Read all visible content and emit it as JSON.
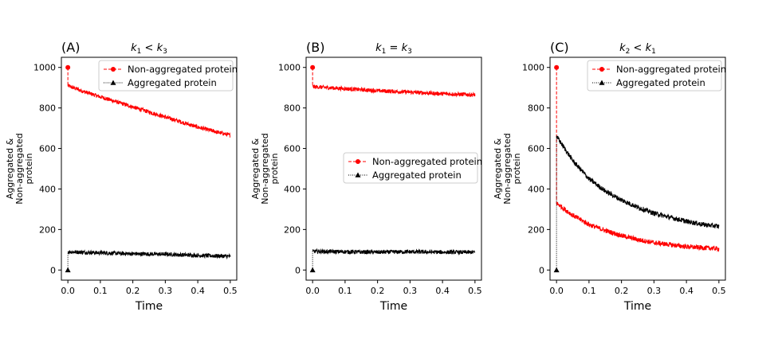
{
  "chart_data": [
    {
      "type": "line",
      "panel_label": "(A)",
      "title_lhs": "k",
      "title_lhs_sub": "1",
      "title_op": "<",
      "title_rhs": "k",
      "title_rhs_sub": "3",
      "xlabel": "Time",
      "ylabel_lines": [
        "Aggregated &",
        "Non-aggregated",
        "protein"
      ],
      "xlim": [
        -0.02,
        0.52
      ],
      "ylim": [
        -50,
        1050
      ],
      "xticks": [
        0.0,
        0.1,
        0.2,
        0.3,
        0.4,
        0.5
      ],
      "xtick_labels": [
        "0.0",
        "0.1",
        "0.2",
        "0.3",
        "0.4",
        "0.5"
      ],
      "yticks": [
        0,
        200,
        400,
        600,
        800,
        1000
      ],
      "ytick_labels": [
        "0",
        "200",
        "400",
        "600",
        "800",
        "1000"
      ],
      "legend_position": "top-right",
      "series": [
        {
          "name": "Non-aggregated protein",
          "color": "#ff0000",
          "marker": "circle",
          "linestyle": "dashed",
          "initial": 1000,
          "x": [
            0,
            0.05,
            0.1,
            0.15,
            0.2,
            0.25,
            0.3,
            0.35,
            0.4,
            0.45,
            0.5
          ],
          "values": [
            910,
            880,
            855,
            830,
            805,
            780,
            755,
            730,
            705,
            685,
            665
          ],
          "noise": 10
        },
        {
          "name": "Aggregated protein",
          "color": "#000000",
          "marker": "triangle",
          "linestyle": "dotted",
          "initial": 0,
          "x": [
            0,
            0.1,
            0.2,
            0.3,
            0.4,
            0.5
          ],
          "values": [
            90,
            85,
            80,
            78,
            72,
            68
          ],
          "noise": 10
        }
      ]
    },
    {
      "type": "line",
      "panel_label": "(B)",
      "title_lhs": "k",
      "title_lhs_sub": "1",
      "title_op": "=",
      "title_rhs": "k",
      "title_rhs_sub": "3",
      "xlabel": "Time",
      "ylabel_lines": [
        "Aggregated &",
        "Non-aggregated",
        "protein"
      ],
      "xlim": [
        -0.02,
        0.52
      ],
      "ylim": [
        -50,
        1050
      ],
      "xticks": [
        0.0,
        0.1,
        0.2,
        0.3,
        0.4,
        0.5
      ],
      "xtick_labels": [
        "0.0",
        "0.1",
        "0.2",
        "0.3",
        "0.4",
        "0.5"
      ],
      "yticks": [
        0,
        200,
        400,
        600,
        800,
        1000
      ],
      "ytick_labels": [
        "0",
        "200",
        "400",
        "600",
        "800",
        "1000"
      ],
      "legend_position": "center-right",
      "series": [
        {
          "name": "Non-aggregated protein",
          "color": "#ff0000",
          "marker": "circle",
          "linestyle": "dashed",
          "initial": 1000,
          "x": [
            0,
            0.1,
            0.2,
            0.3,
            0.4,
            0.5
          ],
          "values": [
            905,
            895,
            885,
            878,
            870,
            865
          ],
          "noise": 10
        },
        {
          "name": "Aggregated protein",
          "color": "#000000",
          "marker": "triangle",
          "linestyle": "dotted",
          "initial": 0,
          "x": [
            0,
            0.1,
            0.2,
            0.3,
            0.4,
            0.5
          ],
          "values": [
            92,
            90,
            88,
            90,
            88,
            88
          ],
          "noise": 10
        }
      ]
    },
    {
      "type": "line",
      "panel_label": "(C)",
      "title_lhs": "k",
      "title_lhs_sub": "2",
      "title_op": "<",
      "title_rhs": "k",
      "title_rhs_sub": "1",
      "xlabel": "Time",
      "ylabel_lines": [
        "Aggregated &",
        "Non-aggregated",
        "protein"
      ],
      "xlim": [
        -0.02,
        0.52
      ],
      "ylim": [
        -50,
        1050
      ],
      "xticks": [
        0.0,
        0.1,
        0.2,
        0.3,
        0.4,
        0.5
      ],
      "xtick_labels": [
        "0.0",
        "0.1",
        "0.2",
        "0.3",
        "0.4",
        "0.5"
      ],
      "yticks": [
        0,
        200,
        400,
        600,
        800,
        1000
      ],
      "ytick_labels": [
        "0",
        "200",
        "400",
        "600",
        "800",
        "1000"
      ],
      "legend_position": "top-right",
      "series": [
        {
          "name": "Non-aggregated protein",
          "color": "#ff0000",
          "marker": "circle",
          "linestyle": "dashed",
          "initial": 1000,
          "x": [
            0,
            0.05,
            0.1,
            0.15,
            0.2,
            0.25,
            0.3,
            0.35,
            0.4,
            0.45,
            0.5
          ],
          "values": [
            330,
            270,
            225,
            195,
            170,
            150,
            135,
            125,
            115,
            110,
            105
          ],
          "noise": 12
        },
        {
          "name": "Aggregated protein",
          "color": "#000000",
          "marker": "triangle",
          "linestyle": "dotted",
          "initial": 0,
          "x": [
            0,
            0.05,
            0.1,
            0.15,
            0.2,
            0.25,
            0.3,
            0.35,
            0.4,
            0.45,
            0.5
          ],
          "values": [
            660,
            540,
            450,
            390,
            345,
            310,
            280,
            260,
            240,
            225,
            215
          ],
          "noise": 12
        }
      ]
    }
  ]
}
